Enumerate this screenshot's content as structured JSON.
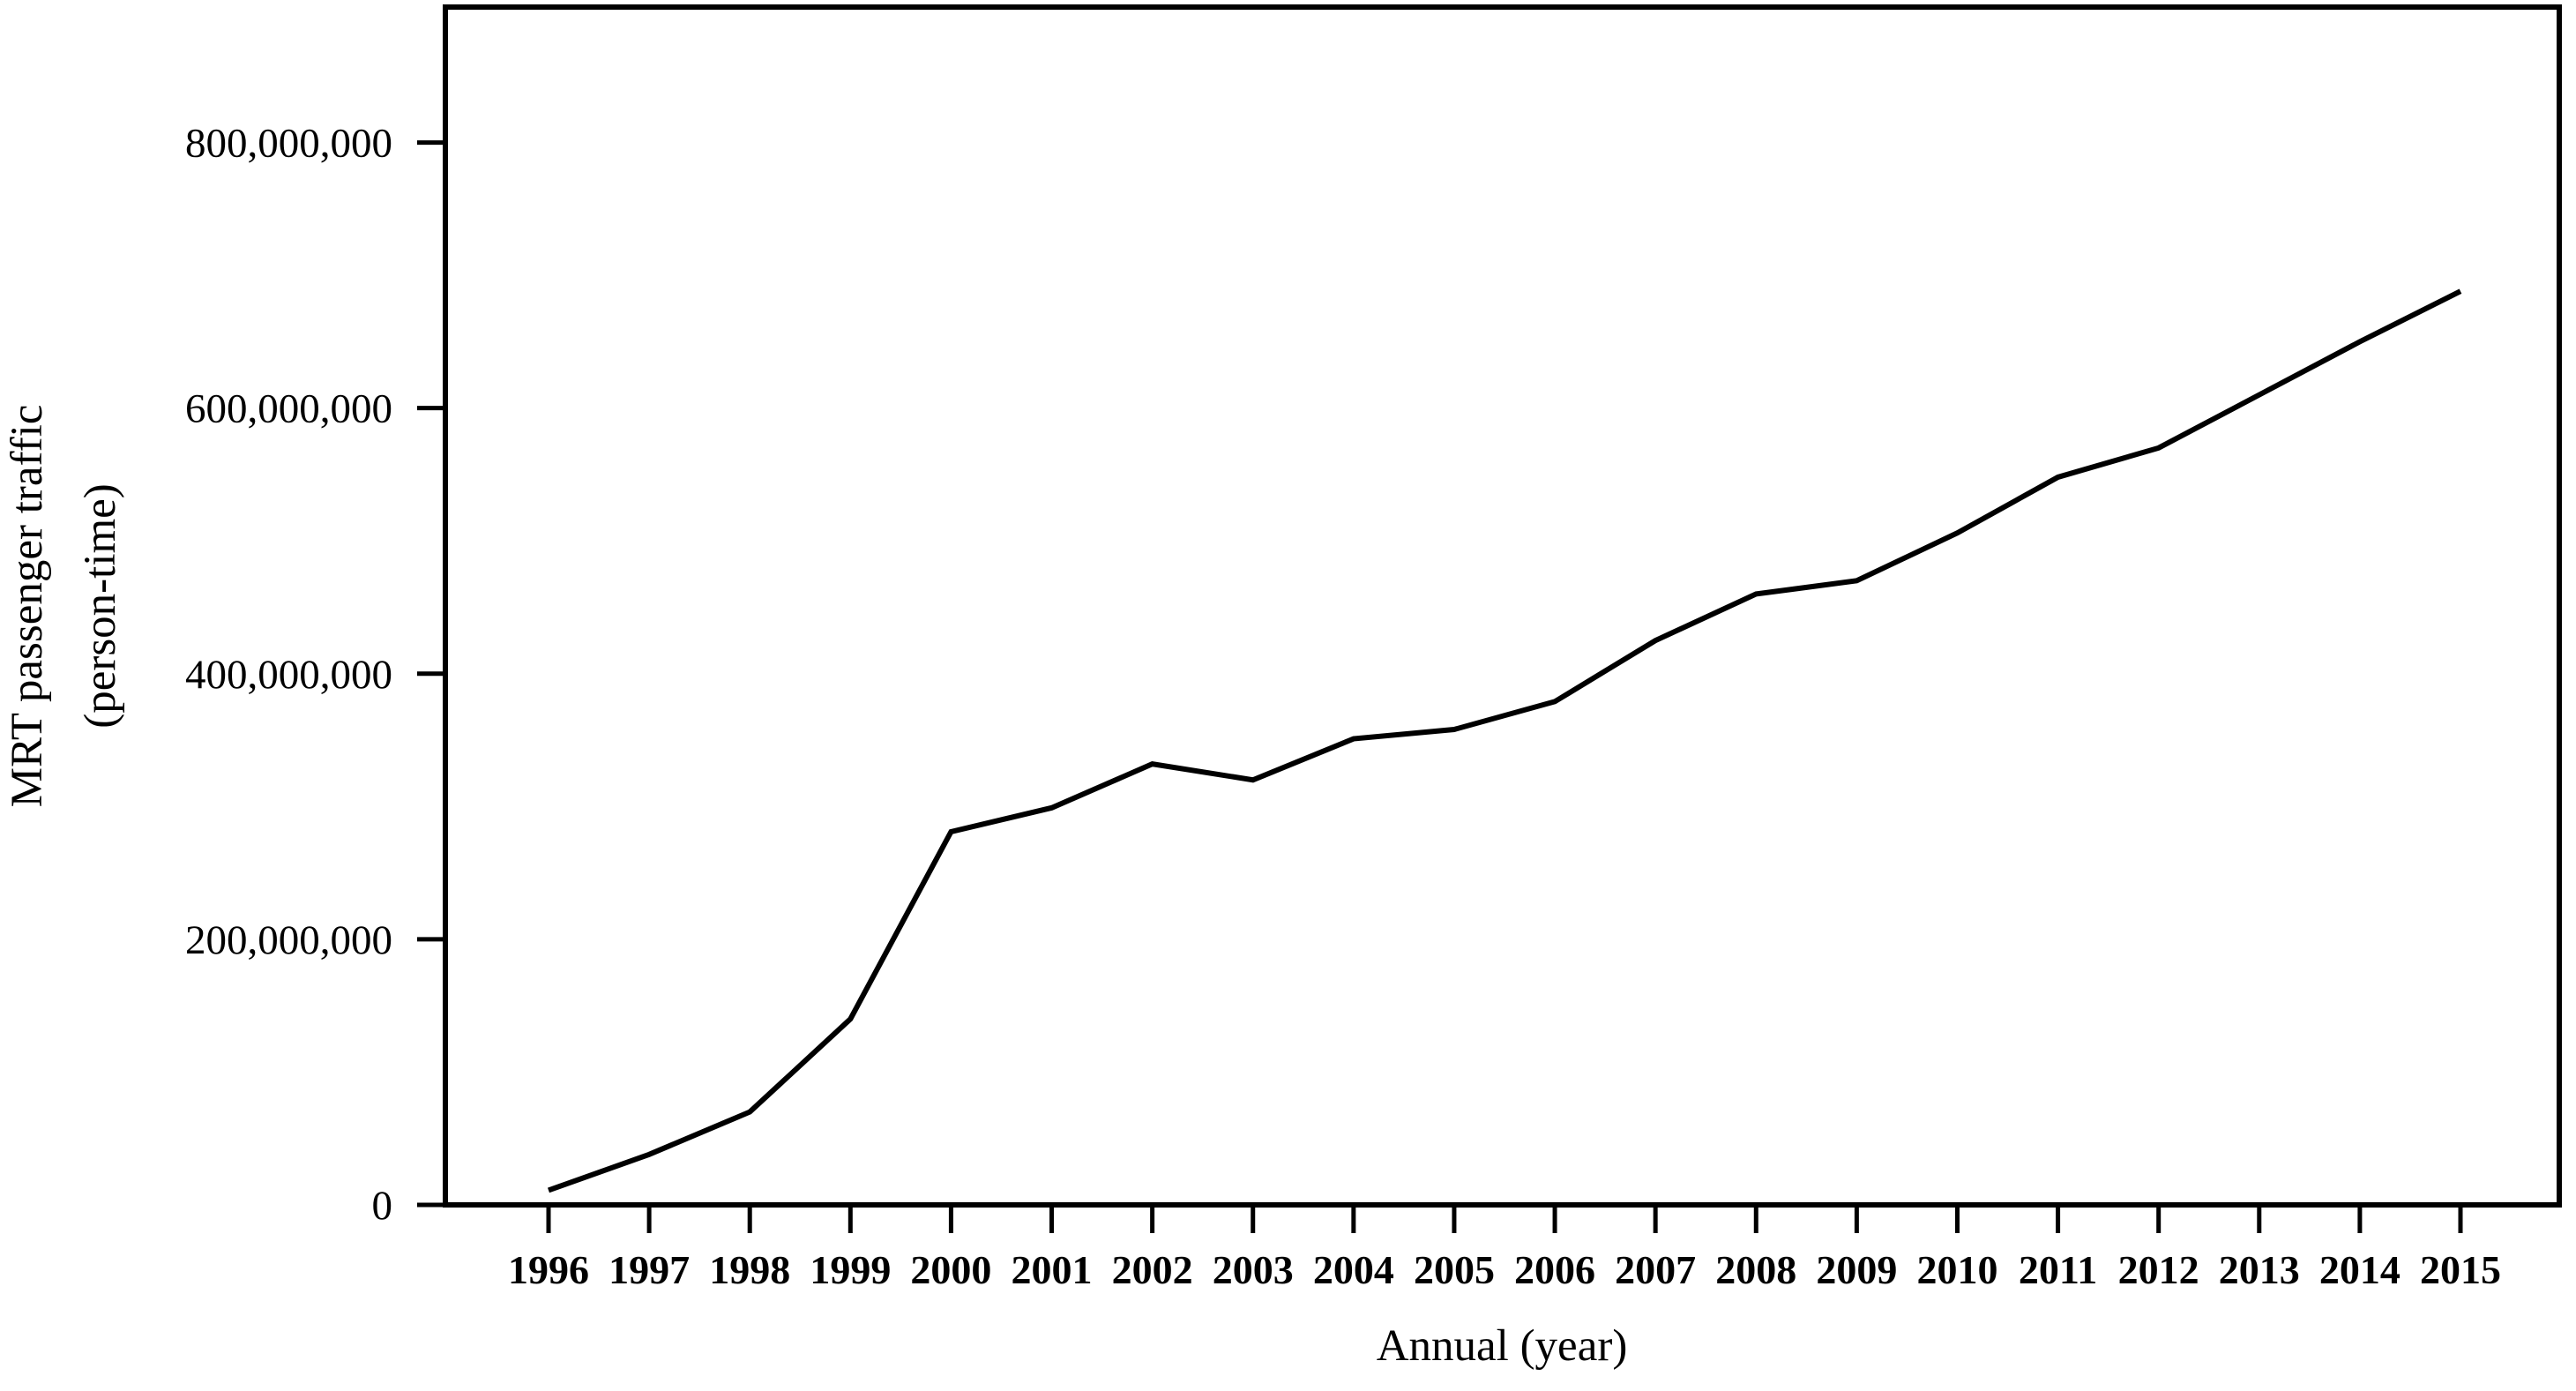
{
  "figure": {
    "background_color": "#ffffff",
    "line_color": "#000000",
    "axis_color": "#000000"
  },
  "chart_data": {
    "type": "line",
    "title": "",
    "xlabel": "Annual (year)",
    "ylabel": "MRT passenger traffic (person-time)",
    "ylabel_lines": [
      "MRT passenger traffic",
      "(person-time)"
    ],
    "legend": "none",
    "grid": "off",
    "categories": [
      "1996",
      "1997",
      "1998",
      "1999",
      "2000",
      "2001",
      "2002",
      "2003",
      "2004",
      "2005",
      "2006",
      "2007",
      "2008",
      "2009",
      "2010",
      "2011",
      "2012",
      "2013",
      "2014",
      "2015"
    ],
    "series": [
      {
        "name": "MRT passenger traffic",
        "values": [
          11000000,
          38000000,
          70000000,
          140000000,
          281000000,
          299000000,
          332000000,
          320000000,
          351000000,
          358000000,
          379000000,
          425000000,
          460000000,
          470000000,
          506000000,
          548000000,
          570000000,
          610000000,
          650000000,
          688000000
        ]
      }
    ],
    "ylim": [
      0,
      902000000
    ],
    "yticks": {
      "values": [
        0,
        200000000,
        400000000,
        600000000,
        800000000
      ],
      "labels": [
        "0",
        "200,000,000",
        "400,000,000",
        "600,000,000",
        "800,000,000"
      ]
    }
  }
}
